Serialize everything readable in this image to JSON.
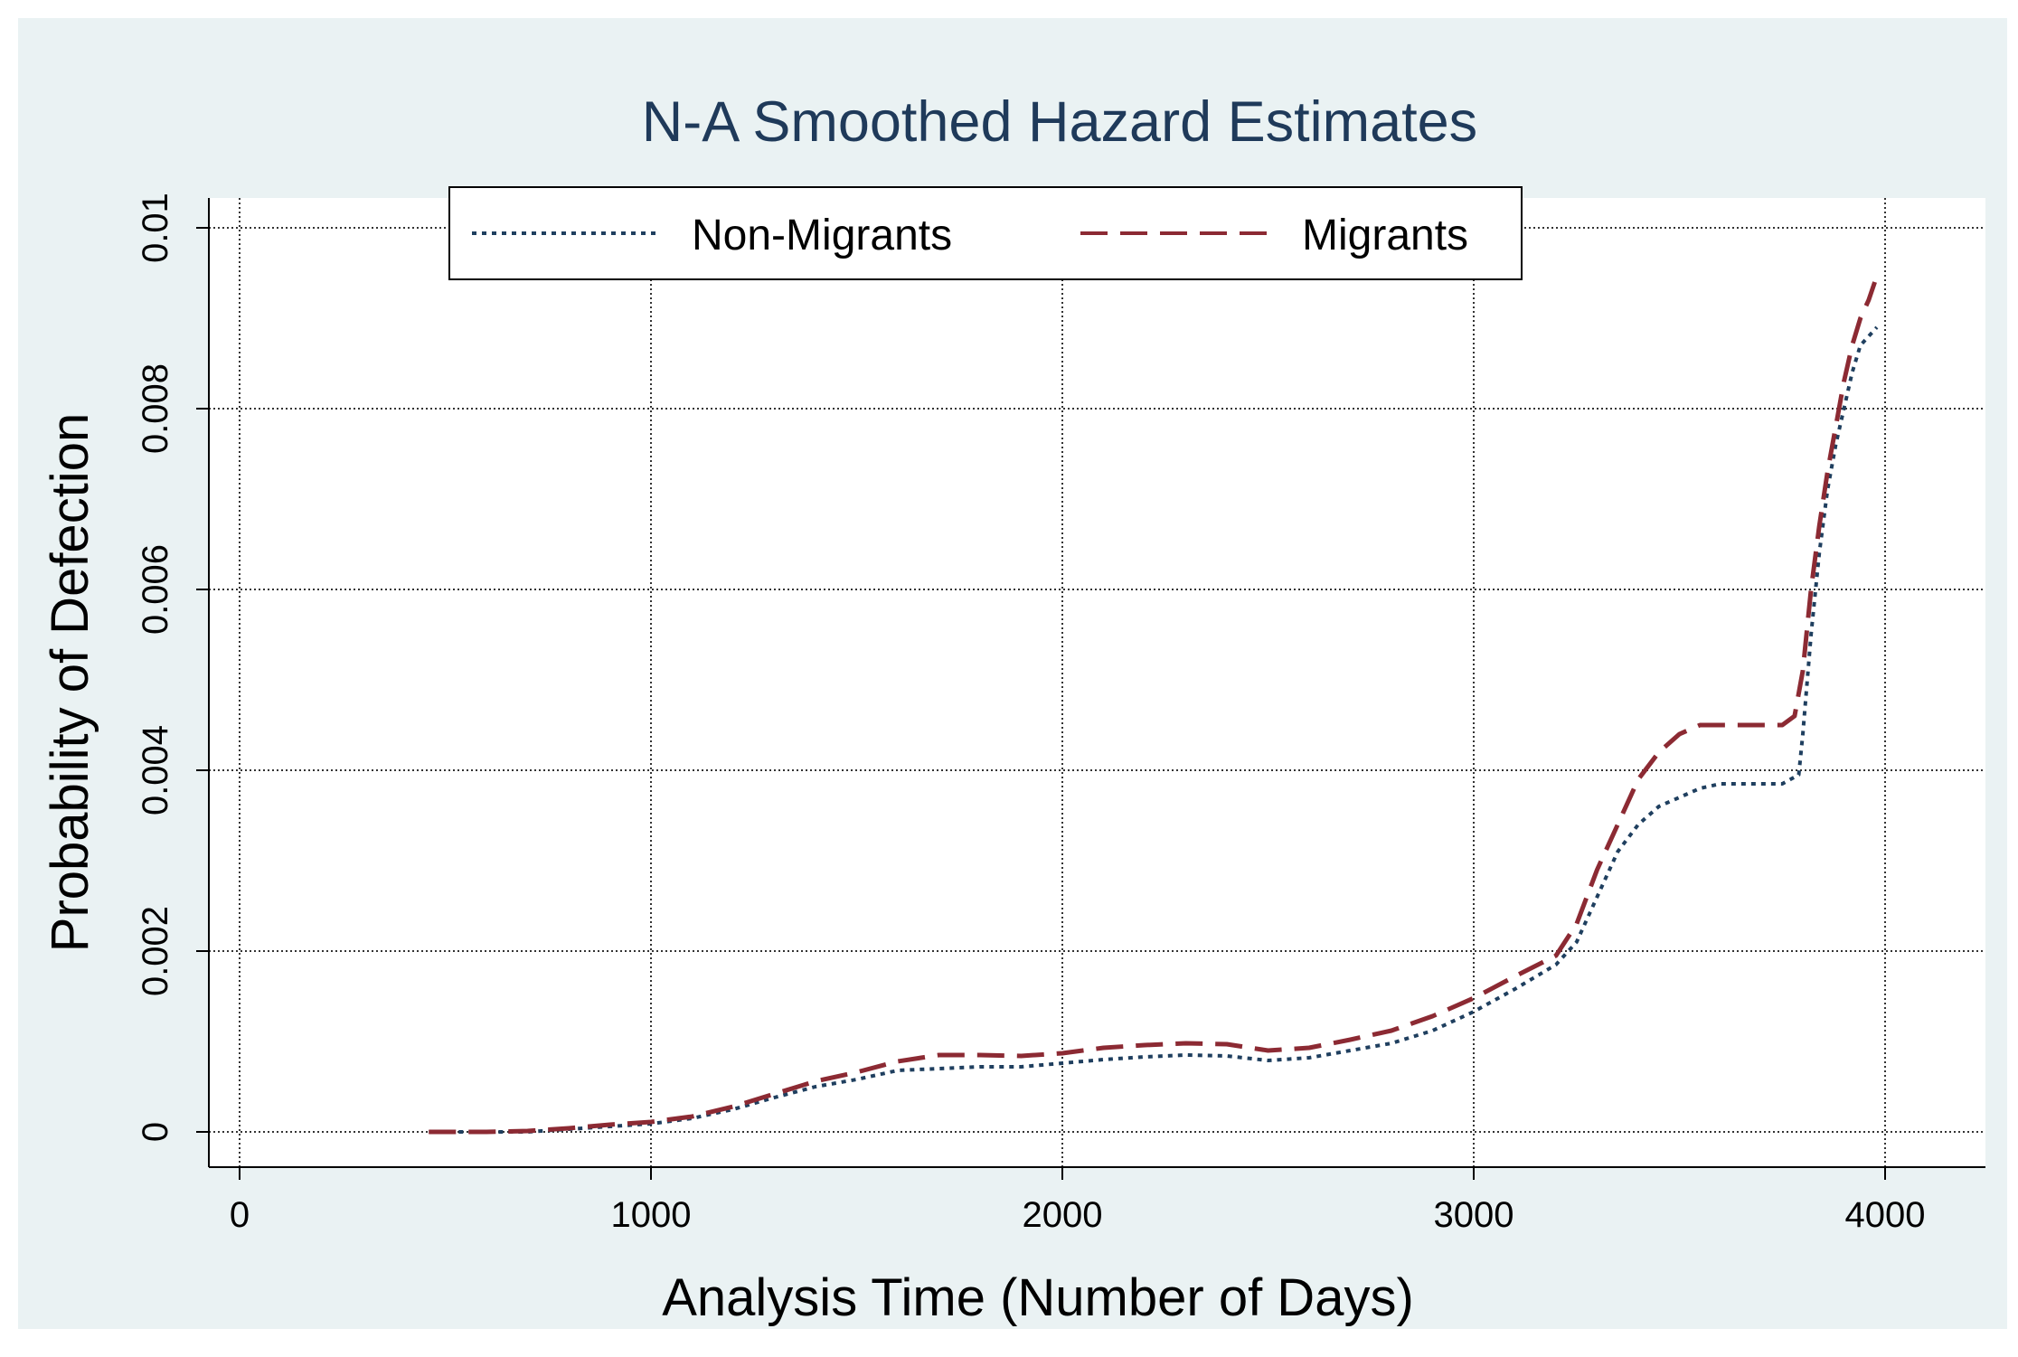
{
  "chart_data": {
    "type": "line",
    "title": "N-A Smoothed Hazard Estimates",
    "xlabel": "Analysis Time (Number of Days)",
    "ylabel": "Probability of Defection",
    "xlim": [
      0,
      4200
    ],
    "ylim": [
      0,
      0.01
    ],
    "x_ticks": [
      0,
      1000,
      2000,
      3000,
      4000
    ],
    "x_tick_labels": [
      "0",
      "1000",
      "2000",
      "3000",
      "4000"
    ],
    "y_ticks": [
      0,
      0.002,
      0.004,
      0.006,
      0.008,
      0.01
    ],
    "y_tick_labels": [
      "0",
      "0.002",
      "0.004",
      "0.006",
      "0.008",
      "0.01"
    ],
    "grid": true,
    "legend_position": "top",
    "series": [
      {
        "name": "Non-Migrants",
        "color": "#1f3f5f",
        "style": "dotted",
        "x": [
          460,
          600,
          700,
          800,
          900,
          1000,
          1100,
          1200,
          1300,
          1400,
          1500,
          1600,
          1700,
          1800,
          1900,
          2000,
          2100,
          2200,
          2300,
          2400,
          2500,
          2600,
          2700,
          2800,
          2900,
          3000,
          3100,
          3200,
          3250,
          3300,
          3350,
          3400,
          3450,
          3500,
          3550,
          3600,
          3650,
          3700,
          3750,
          3790,
          3800,
          3820,
          3840,
          3860,
          3880,
          3900,
          3920,
          3940,
          3960,
          3980
        ],
        "values": [
          0.0,
          0.0,
          0.0,
          3e-05,
          6e-05,
          9e-05,
          0.00015,
          0.00025,
          0.00038,
          0.0005,
          0.00058,
          0.00068,
          0.0007,
          0.00072,
          0.00072,
          0.00076,
          0.0008,
          0.00083,
          0.00085,
          0.00084,
          0.00079,
          0.00082,
          0.0009,
          0.00098,
          0.00112,
          0.00133,
          0.00158,
          0.00185,
          0.0021,
          0.0026,
          0.0031,
          0.0034,
          0.0036,
          0.0037,
          0.0038,
          0.00385,
          0.00385,
          0.00385,
          0.00385,
          0.00395,
          0.0044,
          0.0055,
          0.0064,
          0.0071,
          0.0076,
          0.008,
          0.0084,
          0.0087,
          0.0088,
          0.0089
        ]
      },
      {
        "name": "Migrants",
        "color": "#8c2a33",
        "style": "dashed",
        "x": [
          460,
          600,
          700,
          800,
          900,
          1000,
          1100,
          1200,
          1300,
          1400,
          1500,
          1600,
          1700,
          1800,
          1900,
          2000,
          2100,
          2200,
          2300,
          2400,
          2500,
          2600,
          2700,
          2800,
          2900,
          3000,
          3100,
          3200,
          3250,
          3300,
          3350,
          3400,
          3450,
          3500,
          3550,
          3600,
          3650,
          3700,
          3750,
          3780,
          3800,
          3820,
          3840,
          3860,
          3880,
          3900,
          3920,
          3940,
          3960,
          3975
        ],
        "values": [
          0.0,
          0.0,
          1e-05,
          4e-05,
          8e-05,
          0.00011,
          0.00017,
          0.00028,
          0.00042,
          0.00056,
          0.00066,
          0.00078,
          0.00085,
          0.00085,
          0.00084,
          0.00087,
          0.00093,
          0.00096,
          0.00098,
          0.00097,
          0.0009,
          0.00093,
          0.00102,
          0.00112,
          0.00128,
          0.00148,
          0.00172,
          0.00195,
          0.0023,
          0.0029,
          0.0034,
          0.0039,
          0.0042,
          0.0044,
          0.0045,
          0.0045,
          0.0045,
          0.0045,
          0.0045,
          0.0046,
          0.0051,
          0.006,
          0.0067,
          0.0073,
          0.0078,
          0.0083,
          0.0087,
          0.009,
          0.0092,
          0.0094
        ]
      }
    ]
  }
}
